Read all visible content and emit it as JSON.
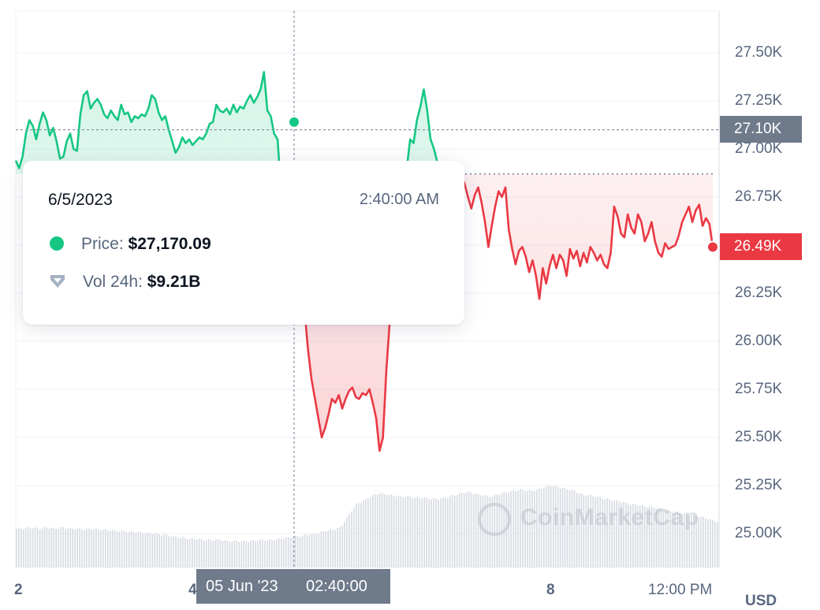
{
  "chart_data": {
    "type": "line",
    "title": "",
    "xlabel": "",
    "ylabel": "",
    "currency": "USD",
    "ylim": [
      24800,
      27700
    ],
    "y_ticks": [
      "27.50K",
      "27.25K",
      "27.00K",
      "26.75K",
      "26.50K",
      "26.25K",
      "26.00K",
      "25.75K",
      "25.50K",
      "25.25K",
      "25.00K"
    ],
    "y_tick_values": [
      27500,
      27250,
      27000,
      26750,
      26500,
      26250,
      26000,
      25750,
      25500,
      25250,
      25000
    ],
    "x_ticks": [
      "2",
      "4",
      "8",
      "12:00 PM"
    ],
    "reference_price": 26870,
    "series": [
      {
        "values": [
          26940,
          26900,
          26960,
          27080,
          27150,
          27120,
          27050,
          27130,
          27190,
          27150,
          27070,
          27110,
          27040,
          26950,
          26960,
          27040,
          27080,
          27000,
          26990,
          27180,
          27280,
          27300,
          27210,
          27240,
          27260,
          27230,
          27180,
          27160,
          27200,
          27170,
          27150,
          27230,
          27180,
          27190,
          27140,
          27170,
          27160,
          27180,
          27170,
          27210,
          27280,
          27260,
          27190,
          27150,
          27170,
          27100,
          27040,
          26980,
          27010,
          27060,
          27030,
          27050,
          27020,
          27040,
          27060,
          27050,
          27080,
          27130,
          27140,
          27230,
          27200,
          27190,
          27210,
          27180,
          27230,
          27190,
          27220,
          27210,
          27250,
          27280,
          27240,
          27270,
          27310,
          27400,
          27200,
          27170,
          27080,
          27050,
          26800,
          26700,
          26600,
          26500,
          26400,
          26300,
          26250,
          26150,
          25950,
          25800,
          25700,
          25600,
          25500,
          25550,
          25620,
          25700,
          25680,
          25720,
          25650,
          25700,
          25740,
          25760,
          25710,
          25700,
          25730,
          25720,
          25750,
          25680,
          25600,
          25430,
          25500,
          25850,
          26100,
          26200,
          26350,
          26450,
          26650,
          26900,
          27050,
          27030,
          27150,
          27220,
          27310,
          27200,
          27050,
          27000,
          26930,
          26870,
          26900,
          26840,
          26780,
          26850,
          26830,
          26860,
          26820,
          26750,
          26690,
          26760,
          26800,
          26720,
          26620,
          26490,
          26600,
          26700,
          26780,
          26750,
          26800,
          26580,
          26480,
          26400,
          26470,
          26490,
          26440,
          26360,
          26420,
          26340,
          26220,
          26380,
          26300,
          26390,
          26450,
          26380,
          26450,
          26420,
          26340,
          26480,
          26430,
          26470,
          26390,
          26460,
          26410,
          26490,
          26460,
          26420,
          26450,
          26400,
          26380,
          26460,
          26700,
          26650,
          26560,
          26540,
          26660,
          26590,
          26560,
          26660,
          26620,
          26520,
          26560,
          26620,
          26520,
          26460,
          26440,
          26510,
          26480,
          26490,
          26500,
          26550,
          26620,
          26660,
          26700,
          26620,
          26680,
          26710,
          26600,
          26640,
          26610,
          26490
        ]
      }
    ],
    "volume": [
      0.34,
      0.34,
      0.35,
      0.34,
      0.35,
      0.34,
      0.35,
      0.34,
      0.34,
      0.33,
      0.34,
      0.33,
      0.33,
      0.32,
      0.32,
      0.31,
      0.31,
      0.3,
      0.3,
      0.29,
      0.28,
      0.27,
      0.26,
      0.25,
      0.25,
      0.24,
      0.24,
      0.24,
      0.23,
      0.23,
      0.23,
      0.23,
      0.24,
      0.24,
      0.24,
      0.25,
      0.26,
      0.27,
      0.28,
      0.29,
      0.3,
      0.32,
      0.33,
      0.35,
      0.45,
      0.55,
      0.58,
      0.62,
      0.65,
      0.64,
      0.63,
      0.62,
      0.62,
      0.61,
      0.61,
      0.6,
      0.6,
      0.61,
      0.63,
      0.65,
      0.66,
      0.64,
      0.63,
      0.62,
      0.64,
      0.66,
      0.67,
      0.68,
      0.67,
      0.68,
      0.7,
      0.72,
      0.7,
      0.69,
      0.67,
      0.64,
      0.63,
      0.62,
      0.6,
      0.59,
      0.58,
      0.56,
      0.55,
      0.54,
      0.53,
      0.52,
      0.5,
      0.49,
      0.48,
      0.46,
      0.45,
      0.44,
      0.42,
      0.4
    ],
    "tooltip": {
      "date": "6/5/2023",
      "time": "2:40:00 AM",
      "price_label": "Price:",
      "price_value": "$27,170.09",
      "vol_label": "Vol 24h:",
      "vol_value": "$9.21B"
    },
    "crosshair_price": "27.10K",
    "current_price": "26.49K",
    "crosshair_date": "05 Jun '23",
    "crosshair_time": "02:40:00",
    "watermark": "CoinMarketCap",
    "colors": {
      "up": "#16c784",
      "down": "#ea3943",
      "axis": "#58667e",
      "tag": "#6f7a8b",
      "grid": "#eff2f5"
    }
  }
}
